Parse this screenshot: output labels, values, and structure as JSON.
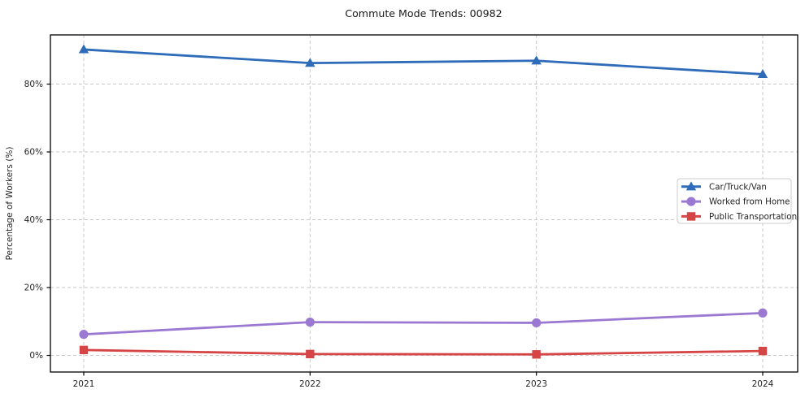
{
  "chart_data": {
    "type": "line",
    "title": "Commute Mode Trends: 00982",
    "xlabel": "",
    "ylabel": "Percentage of Workers (%)",
    "categories": [
      "2021",
      "2022",
      "2023",
      "2024"
    ],
    "y_ticks": [
      0,
      20,
      40,
      60,
      80
    ],
    "y_tick_labels": [
      "0%",
      "20%",
      "40%",
      "60%",
      "80%"
    ],
    "ylim": [
      -4.9,
      94.5
    ],
    "grid": "dashed-both-axes",
    "legend_position": "center-right",
    "series": [
      {
        "name": "Car/Truck/Van",
        "color": "#2e6cba",
        "marker": "triangle",
        "values": [
          90.2,
          86.2,
          86.9,
          82.9
        ]
      },
      {
        "name": "Worked from Home",
        "color": "#9b79d2",
        "marker": "circle",
        "values": [
          6.2,
          9.8,
          9.6,
          12.5
        ]
      },
      {
        "name": "Public Transportation",
        "color": "#d64545",
        "marker": "square",
        "values": [
          1.6,
          0.4,
          0.3,
          1.3
        ]
      }
    ]
  },
  "colors": {
    "background": "#ffffff",
    "grid": "#c9c9c9",
    "spine": "#000000",
    "title_text": "#1a1a1a",
    "tick_text": "#262626",
    "legend_border": "#cccccc",
    "legend_bg": "#ffffff"
  }
}
